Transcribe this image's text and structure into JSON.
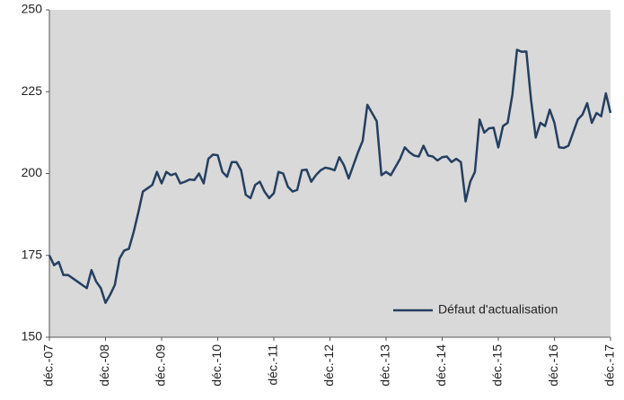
{
  "chart_data": {
    "type": "line",
    "categories": [
      "déc.-07",
      null,
      null,
      null,
      null,
      null,
      null,
      null,
      null,
      null,
      null,
      null,
      "déc.-08",
      null,
      null,
      null,
      null,
      null,
      null,
      null,
      null,
      null,
      null,
      null,
      "déc.-09",
      null,
      null,
      null,
      null,
      null,
      null,
      null,
      null,
      null,
      null,
      null,
      "déc.-10",
      null,
      null,
      null,
      null,
      null,
      null,
      null,
      null,
      null,
      null,
      null,
      "déc.-11",
      null,
      null,
      null,
      null,
      null,
      null,
      null,
      null,
      null,
      null,
      null,
      "déc.-12",
      null,
      null,
      null,
      null,
      null,
      null,
      null,
      null,
      null,
      null,
      null,
      "déc.-13",
      null,
      null,
      null,
      null,
      null,
      null,
      null,
      null,
      null,
      null,
      null,
      "déc.-14",
      null,
      null,
      null,
      null,
      null,
      null,
      null,
      null,
      null,
      null,
      null,
      "déc.-15",
      null,
      null,
      null,
      null,
      null,
      null,
      null,
      null,
      null,
      null,
      null,
      "déc.-16",
      null,
      null,
      null,
      null,
      null,
      null,
      null,
      null,
      null,
      null,
      null,
      "déc.-17"
    ],
    "series": [
      {
        "name": "Défaut d'actualisation",
        "color": "#243f60",
        "values": [
          175,
          172,
          173,
          169,
          169,
          168,
          167,
          166,
          165,
          170.5,
          167,
          165,
          160.5,
          163,
          166,
          174,
          176.5,
          177,
          182,
          188,
          194.5,
          195.5,
          196.5,
          200.5,
          197,
          200.5,
          199.5,
          200,
          197,
          197.5,
          198.2,
          198,
          200,
          197,
          204.5,
          205.8,
          205.6,
          200.5,
          199,
          203.5,
          203.5,
          201,
          193.5,
          192.5,
          196.5,
          197.5,
          194.5,
          192.5,
          194,
          200.5,
          200,
          196,
          194.5,
          195,
          201,
          201.2,
          197.5,
          199.5,
          201,
          201.8,
          201.5,
          201,
          205,
          202.5,
          198.5,
          202.5,
          206.5,
          210,
          221,
          218.5,
          216,
          199.5,
          200.5,
          199.5,
          202,
          204.5,
          208,
          206.5,
          205.5,
          205.2,
          208.5,
          205.5,
          205.2,
          204,
          205,
          205.2,
          203.5,
          204.5,
          203.5,
          191.5,
          197.5,
          200.5,
          216.5,
          212.5,
          213.8,
          214,
          208,
          214.5,
          215.5,
          224,
          237.8,
          237.2,
          237.3,
          222.5,
          211,
          215.5,
          214.5,
          219.5,
          215.5,
          208,
          207.8,
          208.5,
          212.5,
          216.5,
          218,
          221.5,
          215.5,
          218.5,
          217.5,
          224.5,
          218.5
        ]
      }
    ],
    "ylim": [
      150,
      250
    ],
    "yticks": [
      150,
      175,
      200,
      225,
      250
    ],
    "legend": "lower right"
  }
}
